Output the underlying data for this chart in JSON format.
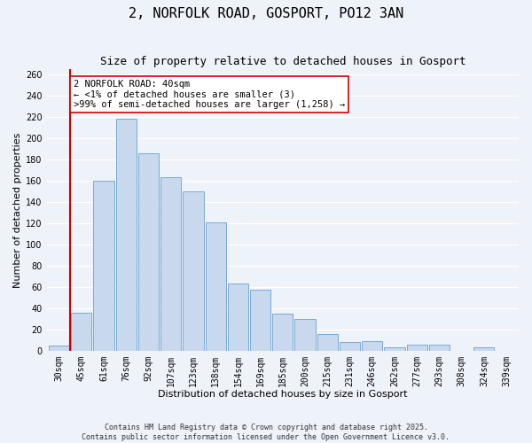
{
  "title": "2, NORFOLK ROAD, GOSPORT, PO12 3AN",
  "subtitle": "Size of property relative to detached houses in Gosport",
  "xlabel": "Distribution of detached houses by size in Gosport",
  "ylabel": "Number of detached properties",
  "categories": [
    "30sqm",
    "45sqm",
    "61sqm",
    "76sqm",
    "92sqm",
    "107sqm",
    "123sqm",
    "138sqm",
    "154sqm",
    "169sqm",
    "185sqm",
    "200sqm",
    "215sqm",
    "231sqm",
    "246sqm",
    "262sqm",
    "277sqm",
    "293sqm",
    "308sqm",
    "324sqm",
    "339sqm"
  ],
  "values": [
    5,
    36,
    160,
    218,
    186,
    163,
    150,
    121,
    63,
    57,
    35,
    30,
    16,
    8,
    9,
    3,
    6,
    6,
    0,
    3,
    0
  ],
  "bar_color": "#c8d9ee",
  "bar_edge_color": "#7aaad4",
  "vline_color": "#cc0000",
  "annotation_text": "2 NORFOLK ROAD: 40sqm\n← <1% of detached houses are smaller (3)\n>99% of semi-detached houses are larger (1,258) →",
  "annotation_box_edge": "#cc0000",
  "annotation_box_face": "white",
  "ylim": [
    0,
    265
  ],
  "yticks": [
    0,
    20,
    40,
    60,
    80,
    100,
    120,
    140,
    160,
    180,
    200,
    220,
    240,
    260
  ],
  "footnote1": "Contains HM Land Registry data © Crown copyright and database right 2025.",
  "footnote2": "Contains public sector information licensed under the Open Government Licence v3.0.",
  "bg_color": "#eef2f9",
  "grid_color": "white",
  "title_fontsize": 11,
  "subtitle_fontsize": 9,
  "axis_label_fontsize": 8,
  "tick_fontsize": 7,
  "annotation_fontsize": 7.5
}
